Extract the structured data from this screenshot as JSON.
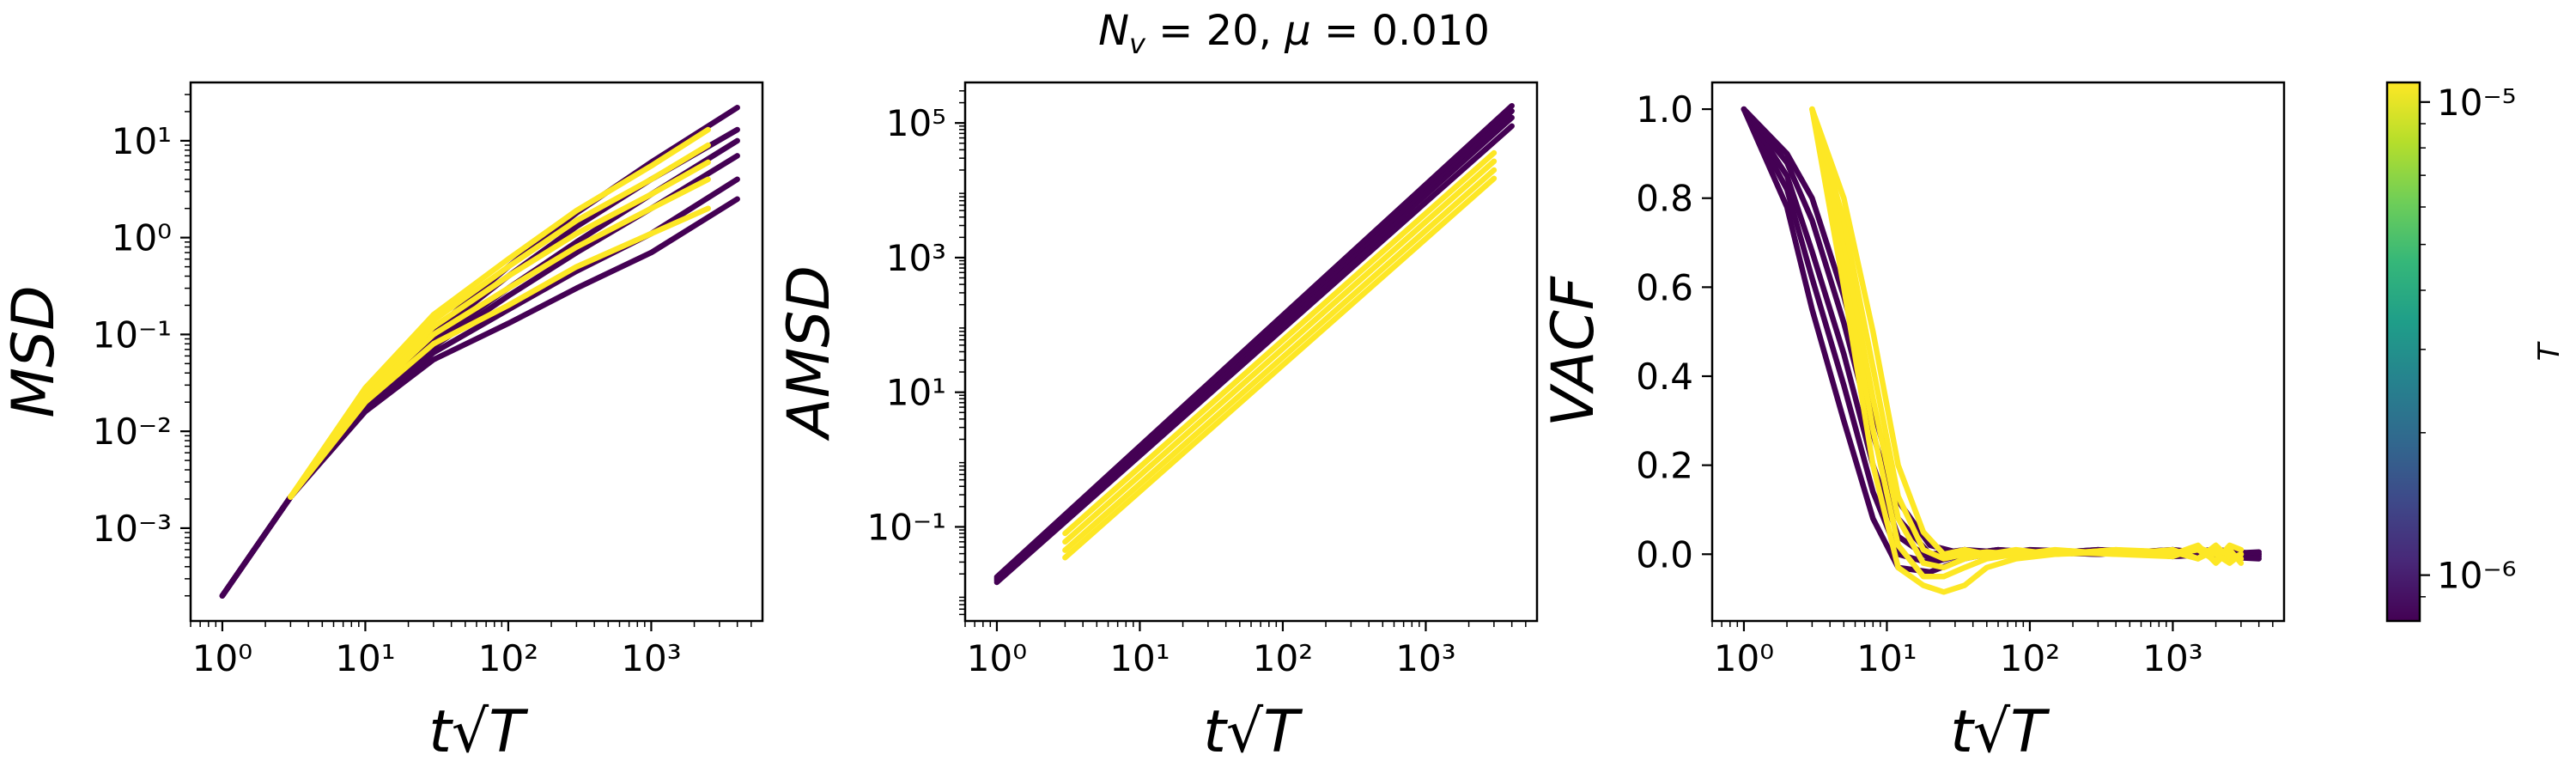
{
  "suptitle": "N_v = 20, μ = 0.010",
  "colorbar": {
    "label": "T",
    "colormap": "viridis",
    "scale": "log",
    "range": [
      8e-07,
      1.1e-05
    ],
    "ticks": [
      {
        "value": 1e-06,
        "label": "10⁻⁶"
      },
      {
        "value": 1e-05,
        "label": "10⁻⁵"
      }
    ],
    "colors": [
      "#440154",
      "#482878",
      "#3e4989",
      "#31688e",
      "#26828e",
      "#1f9e89",
      "#35b779",
      "#6ece58",
      "#b5de2b",
      "#fde725"
    ]
  },
  "chart_data": [
    {
      "type": "line",
      "xlabel": "t√T",
      "ylabel": "MSD",
      "xscale": "log",
      "yscale": "log",
      "xlim": [
        0.6,
        6000
      ],
      "ylim": [
        0.00011,
        40
      ],
      "xticks": [
        {
          "value": 1,
          "label": "10⁰"
        },
        {
          "value": 10,
          "label": "10¹"
        },
        {
          "value": 100,
          "label": "10²"
        },
        {
          "value": 1000,
          "label": "10³"
        }
      ],
      "yticks": [
        {
          "value": 0.001,
          "label": "10⁻³"
        },
        {
          "value": 0.01,
          "label": "10⁻²"
        },
        {
          "value": 0.1,
          "label": "10⁻¹"
        },
        {
          "value": 1,
          "label": "10⁰"
        },
        {
          "value": 10,
          "label": "10¹"
        }
      ],
      "series": [
        {
          "color": "#440154",
          "x": [
            1,
            3,
            10,
            30,
            100,
            300,
            1000,
            4000
          ],
          "y": [
            0.0002,
            0.0021,
            0.016,
            0.055,
            0.13,
            0.3,
            0.7,
            2.5
          ]
        },
        {
          "color": "#440154",
          "x": [
            1,
            3,
            10,
            30,
            100,
            300,
            1000,
            4000
          ],
          "y": [
            0.0002,
            0.0021,
            0.017,
            0.065,
            0.18,
            0.45,
            1.1,
            4
          ]
        },
        {
          "color": "#440154",
          "x": [
            1,
            3,
            10,
            30,
            100,
            300,
            1000,
            4000
          ],
          "y": [
            0.0002,
            0.0021,
            0.018,
            0.075,
            0.25,
            0.7,
            2,
            7
          ]
        },
        {
          "color": "#440154",
          "x": [
            1,
            3,
            10,
            30,
            100,
            300,
            1000,
            4000
          ],
          "y": [
            0.0002,
            0.0021,
            0.019,
            0.085,
            0.3,
            0.9,
            2.8,
            10
          ]
        },
        {
          "color": "#440154",
          "x": [
            1,
            3,
            10,
            30,
            100,
            300,
            1000,
            4000
          ],
          "y": [
            0.0002,
            0.0021,
            0.02,
            0.1,
            0.4,
            1.3,
            4,
            13
          ]
        },
        {
          "color": "#440154",
          "x": [
            1,
            3,
            10,
            30,
            100,
            300,
            1000,
            4000
          ],
          "y": [
            0.0002,
            0.0021,
            0.021,
            0.11,
            0.5,
            1.8,
            6,
            22
          ]
        },
        {
          "color": "#fde725",
          "x": [
            3,
            10,
            30,
            100,
            300,
            1000,
            2500
          ],
          "y": [
            0.0021,
            0.02,
            0.08,
            0.2,
            0.5,
            1.1,
            2
          ]
        },
        {
          "color": "#fde725",
          "x": [
            3,
            10,
            30,
            100,
            300,
            1000,
            2500
          ],
          "y": [
            0.0021,
            0.022,
            0.1,
            0.3,
            0.8,
            2,
            4
          ]
        },
        {
          "color": "#fde725",
          "x": [
            3,
            10,
            30,
            100,
            300,
            1000,
            2500
          ],
          "y": [
            0.0021,
            0.024,
            0.12,
            0.4,
            1.1,
            2.8,
            6
          ]
        },
        {
          "color": "#fde725",
          "x": [
            3,
            10,
            30,
            100,
            300,
            1000,
            2500
          ],
          "y": [
            0.0021,
            0.026,
            0.14,
            0.5,
            1.5,
            4,
            9
          ]
        },
        {
          "color": "#fde725",
          "x": [
            3,
            10,
            30,
            100,
            300,
            1000,
            2500
          ],
          "y": [
            0.0021,
            0.028,
            0.16,
            0.6,
            1.9,
            5.5,
            13
          ]
        }
      ]
    },
    {
      "type": "line",
      "xlabel": "t√T",
      "ylabel": "AMSD",
      "xscale": "log",
      "yscale": "log",
      "xlim": [
        0.6,
        6000
      ],
      "ylim": [
        0.004,
        400000
      ],
      "xticks": [
        {
          "value": 1,
          "label": "10⁰"
        },
        {
          "value": 10,
          "label": "10¹"
        },
        {
          "value": 100,
          "label": "10²"
        },
        {
          "value": 1000,
          "label": "10³"
        }
      ],
      "yticks": [
        {
          "value": 0.1,
          "label": "10⁻¹"
        },
        {
          "value": 10,
          "label": "10¹"
        },
        {
          "value": 1000,
          "label": "10³"
        },
        {
          "value": 100000,
          "label": "10⁵"
        }
      ],
      "series": [
        {
          "color": "#440154",
          "x": [
            1,
            4000
          ],
          "y": [
            0.015,
            90000
          ]
        },
        {
          "color": "#440154",
          "x": [
            1,
            4000
          ],
          "y": [
            0.016,
            120000
          ]
        },
        {
          "color": "#440154",
          "x": [
            1,
            4000
          ],
          "y": [
            0.017,
            150000
          ]
        },
        {
          "color": "#440154",
          "x": [
            1,
            4000
          ],
          "y": [
            0.018,
            180000
          ]
        },
        {
          "color": "#fde725",
          "x": [
            3,
            3000
          ],
          "y": [
            0.035,
            15000
          ]
        },
        {
          "color": "#fde725",
          "x": [
            3,
            3000
          ],
          "y": [
            0.045,
            20000
          ]
        },
        {
          "color": "#fde725",
          "x": [
            3,
            3000
          ],
          "y": [
            0.06,
            27000
          ]
        },
        {
          "color": "#fde725",
          "x": [
            3,
            3000
          ],
          "y": [
            0.08,
            36000
          ]
        }
      ]
    },
    {
      "type": "line",
      "xlabel": "t√T",
      "ylabel": "VACF",
      "xscale": "log",
      "yscale": "linear",
      "xlim": [
        0.6,
        6000
      ],
      "ylim": [
        -0.15,
        1.06
      ],
      "xticks": [
        {
          "value": 1,
          "label": "10⁰"
        },
        {
          "value": 10,
          "label": "10¹"
        },
        {
          "value": 100,
          "label": "10²"
        },
        {
          "value": 1000,
          "label": "10³"
        }
      ],
      "yticks": [
        {
          "value": 0,
          "label": "0.0"
        },
        {
          "value": 0.2,
          "label": "0.2"
        },
        {
          "value": 0.4,
          "label": "0.4"
        },
        {
          "value": 0.6,
          "label": "0.6"
        },
        {
          "value": 0.8,
          "label": "0.8"
        },
        {
          "value": 1,
          "label": "1.0"
        }
      ],
      "series": [
        {
          "color": "#440154",
          "x": [
            1,
            2,
            3,
            5,
            8,
            12,
            20,
            35,
            60,
            100,
            300,
            1000,
            2000,
            4000
          ],
          "y": [
            1,
            0.78,
            0.55,
            0.3,
            0.08,
            -0.03,
            -0.04,
            -0.01,
            0.005,
            0,
            0.01,
            0.005,
            0.01,
            0
          ]
        },
        {
          "color": "#440154",
          "x": [
            1,
            2,
            3,
            5,
            8,
            12,
            20,
            35,
            60,
            100,
            300,
            1000,
            2000,
            4000
          ],
          "y": [
            1,
            0.82,
            0.62,
            0.38,
            0.14,
            0.0,
            -0.02,
            0.0,
            0.01,
            0.005,
            0.0,
            0.01,
            0.0,
            -0.005
          ]
        },
        {
          "color": "#440154",
          "x": [
            1,
            2,
            3,
            5,
            8,
            12,
            20,
            35,
            60,
            100,
            300,
            1000,
            2000,
            4000
          ],
          "y": [
            1,
            0.85,
            0.68,
            0.45,
            0.2,
            0.04,
            -0.01,
            0.01,
            0.0,
            0.01,
            0.005,
            0.0,
            0.01,
            0.0
          ]
        },
        {
          "color": "#440154",
          "x": [
            1,
            2,
            3,
            5,
            8,
            12,
            20,
            35,
            60,
            100,
            300,
            1000,
            2000,
            4000
          ],
          "y": [
            1,
            0.88,
            0.75,
            0.52,
            0.27,
            0.08,
            0.0,
            0.01,
            0.005,
            0.0,
            0.01,
            -0.005,
            0.0,
            0.005
          ]
        },
        {
          "color": "#440154",
          "x": [
            1,
            2,
            3,
            5,
            8,
            12,
            20,
            35,
            60,
            100,
            300,
            1000,
            2000,
            4000
          ],
          "y": [
            1,
            0.9,
            0.8,
            0.58,
            0.33,
            0.12,
            0.02,
            0.0,
            0.01,
            0.005,
            0.0,
            0.01,
            -0.005,
            -0.01
          ]
        },
        {
          "color": "#fde725",
          "x": [
            3,
            5,
            8,
            12,
            18,
            25,
            35,
            50,
            80,
            150,
            400,
            1000,
            1500,
            2000,
            2500,
            3000
          ],
          "y": [
            1,
            0.6,
            0.2,
            -0.03,
            -0.07,
            -0.085,
            -0.07,
            -0.03,
            -0.01,
            0.0,
            0.01,
            0.0,
            0.02,
            -0.02,
            0.01,
            -0.02
          ]
        },
        {
          "color": "#fde725",
          "x": [
            3,
            5,
            8,
            12,
            18,
            25,
            35,
            50,
            80,
            150,
            400,
            1000,
            1500,
            2000,
            2500,
            3000
          ],
          "y": [
            1,
            0.65,
            0.28,
            0.02,
            -0.05,
            -0.05,
            -0.03,
            -0.01,
            0.0,
            0.005,
            0.0,
            0.01,
            -0.01,
            0.02,
            -0.01,
            0.0
          ]
        },
        {
          "color": "#fde725",
          "x": [
            3,
            5,
            8,
            12,
            18,
            25,
            35,
            50,
            80,
            150,
            400,
            1000,
            1500,
            2000,
            2500,
            3000
          ],
          "y": [
            1,
            0.7,
            0.35,
            0.08,
            -0.02,
            -0.03,
            -0.01,
            0.0,
            0.01,
            0.0,
            0.005,
            0.0,
            0.01,
            -0.015,
            0.02,
            0.01
          ]
        },
        {
          "color": "#fde725",
          "x": [
            3,
            5,
            8,
            12,
            18,
            25,
            35,
            50,
            80,
            150,
            400,
            1000,
            1500,
            2000,
            2500,
            3000
          ],
          "y": [
            1,
            0.75,
            0.42,
            0.13,
            0.01,
            -0.01,
            0.0,
            0.005,
            0.0,
            0.01,
            0.0,
            -0.005,
            0.015,
            0.0,
            -0.02,
            0.0
          ]
        },
        {
          "color": "#fde725",
          "x": [
            3,
            5,
            8,
            12,
            18,
            25,
            35,
            50,
            80,
            150,
            400,
            1000,
            1500,
            2000,
            2500,
            3000
          ],
          "y": [
            1,
            0.8,
            0.5,
            0.2,
            0.05,
            0.0,
            0.01,
            0.0,
            0.005,
            0.0,
            0.01,
            0.005,
            -0.01,
            0.01,
            0.0,
            -0.01
          ]
        }
      ]
    }
  ]
}
